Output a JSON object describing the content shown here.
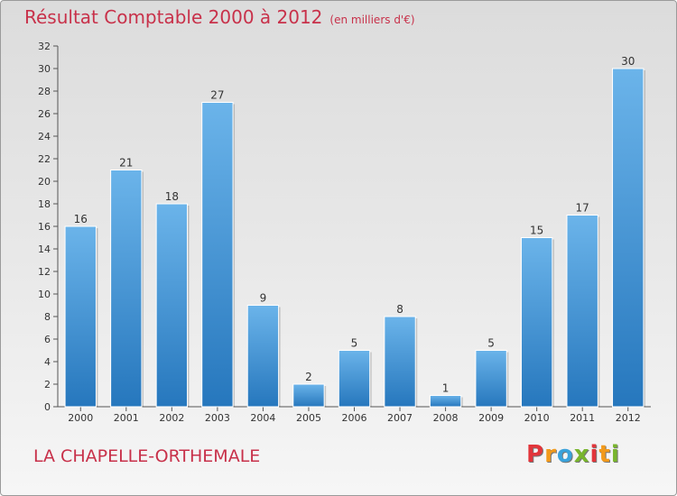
{
  "header": {
    "title": "Résultat Comptable 2000 à 2012",
    "subtitle": "(en milliers d'€)"
  },
  "footer": {
    "commune": "LA CHAPELLE-ORTHEMALE",
    "logo": [
      "P",
      "r",
      "o",
      "x",
      "i",
      "t",
      "i"
    ],
    "logo_colors": [
      "#e2353b",
      "#f29a1b",
      "#3aa2db",
      "#79b52e",
      "#e2353b",
      "#f29a1b",
      "#79b52e"
    ]
  },
  "colors": {
    "bar_top": "#6bb4ea",
    "bar_bottom": "#2677bd",
    "text": "#333333"
  },
  "chart_data": {
    "type": "bar",
    "title": "Résultat Comptable 2000 à 2012",
    "categories": [
      "2000",
      "2001",
      "2002",
      "2003",
      "2004",
      "2005",
      "2006",
      "2007",
      "2008",
      "2009",
      "2010",
      "2011",
      "2012"
    ],
    "values": [
      16,
      21,
      18,
      27,
      9,
      2,
      5,
      8,
      1,
      5,
      15,
      17,
      30
    ],
    "ylim": [
      0,
      32
    ],
    "yticks": [
      0,
      2,
      4,
      6,
      8,
      10,
      12,
      14,
      16,
      18,
      20,
      22,
      24,
      26,
      28,
      30,
      32
    ],
    "grid": false,
    "legend": "none"
  }
}
